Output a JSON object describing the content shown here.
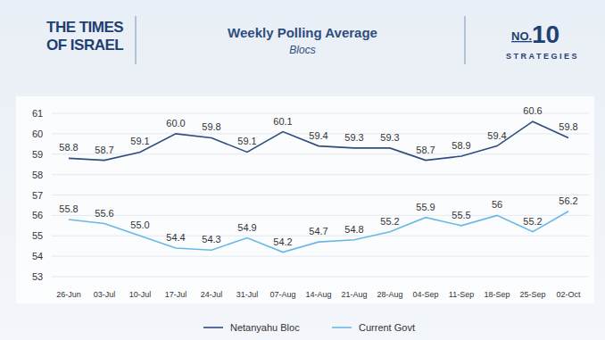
{
  "header": {
    "logo_left": [
      "THE TIMES",
      "OF ISRAEL"
    ],
    "logo_right_prefix": "NO.",
    "logo_right_number": "10",
    "logo_right_word": "STRATEGIES"
  },
  "chart_data": {
    "type": "line",
    "title": "Weekly Polling Average",
    "subtitle": "Blocs",
    "categories": [
      "26-Jun",
      "03-Jul",
      "10-Jul",
      "17-Jul",
      "24-Jul",
      "31-Jul",
      "07-Aug",
      "14-Aug",
      "21-Aug",
      "28-Aug",
      "04-Sep",
      "11-Sep",
      "18-Sep",
      "25-Sep",
      "02-Oct"
    ],
    "series": [
      {
        "name": "Netanyahu Bloc",
        "color": "#2e4d7e",
        "values": [
          58.8,
          58.7,
          59.1,
          60.0,
          59.8,
          59.1,
          60.1,
          59.4,
          59.3,
          59.3,
          58.7,
          58.9,
          59.4,
          60.6,
          59.8
        ],
        "value_labels": [
          "58.8",
          "58.7",
          "59.1",
          "60.0",
          "59.8",
          "59.1",
          "60.1",
          "59.4",
          "59.3",
          "59.3",
          "58.7",
          "58.9",
          "59.4",
          "60.6",
          "59.8"
        ]
      },
      {
        "name": "Current Govt",
        "color": "#6ab8e4",
        "values": [
          55.8,
          55.6,
          55.0,
          54.4,
          54.3,
          54.9,
          54.2,
          54.7,
          54.8,
          55.2,
          55.9,
          55.5,
          56,
          55.2,
          56.2
        ],
        "value_labels": [
          "55.8",
          "55.6",
          "55.0",
          "54.4",
          "54.3",
          "54.9",
          "54.2",
          "54.7",
          "54.8",
          "55.2",
          "55.9",
          "55.5",
          "56",
          "55.2",
          "56.2"
        ]
      }
    ],
    "ylim": [
      53,
      61
    ],
    "yticks": [
      53,
      54,
      55,
      56,
      57,
      58,
      59,
      60,
      61
    ],
    "grid": true,
    "data_labels": true,
    "legend": "bottom"
  }
}
